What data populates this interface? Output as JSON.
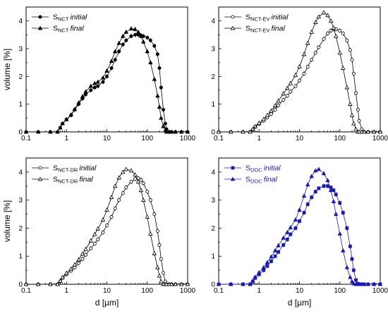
{
  "chart_data": [
    {
      "type": "line",
      "xscale": "log",
      "xlim": [
        0.1,
        1000
      ],
      "ylim": [
        0,
        4.5
      ],
      "xticks": [
        "0.1",
        "1",
        "10",
        "100",
        "1000"
      ],
      "yticks": [
        "0",
        "1",
        "2",
        "3",
        "4"
      ],
      "xlabel": "",
      "ylabel": "volume [%]",
      "legend_position": "top-left",
      "color": "#000000",
      "series": [
        {
          "name": "S",
          "name_sub": "NCT",
          "name_suffix": "initial",
          "marker": "circle-filled",
          "x": [
            0.1,
            0.2,
            0.4,
            0.6,
            0.7,
            0.8,
            1,
            1.3,
            1.6,
            2,
            2.5,
            3,
            4,
            5,
            6,
            8,
            10,
            13,
            16,
            20,
            25,
            30,
            40,
            50,
            60,
            70,
            80,
            100,
            120,
            150,
            180,
            200,
            220,
            250,
            280,
            300,
            350,
            400,
            500,
            700,
            1000
          ],
          "y": [
            0,
            0,
            0,
            0,
            0.15,
            0.3,
            0.45,
            0.6,
            0.8,
            1.0,
            1.2,
            1.35,
            1.5,
            1.6,
            1.65,
            1.8,
            2.0,
            2.3,
            2.6,
            2.9,
            3.15,
            3.3,
            3.45,
            3.5,
            3.5,
            3.48,
            3.45,
            3.4,
            3.3,
            3.1,
            2.8,
            2.3,
            1.6,
            0.8,
            0.3,
            0.1,
            0,
            0,
            0,
            0,
            0
          ]
        },
        {
          "name": "S",
          "name_sub": "NCT",
          "name_suffix": "final",
          "marker": "triangle-filled",
          "x": [
            0.1,
            0.2,
            0.4,
            0.6,
            0.7,
            0.8,
            1,
            1.3,
            1.6,
            2,
            2.5,
            3,
            4,
            5,
            6,
            8,
            10,
            13,
            16,
            20,
            25,
            30,
            40,
            50,
            60,
            70,
            80,
            100,
            120,
            150,
            180,
            200,
            220,
            250,
            280,
            300,
            350,
            400,
            500,
            700,
            1000
          ],
          "y": [
            0,
            0,
            0,
            0,
            0.15,
            0.3,
            0.45,
            0.62,
            0.82,
            1.05,
            1.28,
            1.45,
            1.65,
            1.75,
            1.8,
            1.95,
            2.2,
            2.55,
            2.9,
            3.2,
            3.45,
            3.6,
            3.72,
            3.7,
            3.6,
            3.45,
            3.25,
            2.9,
            2.5,
            1.9,
            1.3,
            0.9,
            0.5,
            0.2,
            0.05,
            0,
            0,
            0,
            0,
            0,
            0
          ]
        }
      ]
    },
    {
      "type": "line",
      "xscale": "log",
      "xlim": [
        0.1,
        1000
      ],
      "ylim": [
        0,
        4.5
      ],
      "xticks": [
        "0.1",
        "1",
        "10",
        "100",
        "1000"
      ],
      "yticks": [
        "0",
        "1",
        "2",
        "3",
        "4"
      ],
      "xlabel": "",
      "ylabel": "",
      "legend_position": "top-left",
      "color": "#000000",
      "series": [
        {
          "name": "S",
          "name_sub": "NCT-EV",
          "name_suffix": "initial",
          "marker": "circle-open",
          "x": [
            0.1,
            0.2,
            0.4,
            0.6,
            0.7,
            0.8,
            1,
            1.3,
            1.6,
            2,
            2.5,
            3,
            4,
            5,
            6,
            8,
            10,
            13,
            16,
            20,
            25,
            30,
            40,
            50,
            60,
            70,
            80,
            100,
            120,
            150,
            180,
            200,
            220,
            250,
            280,
            300,
            350,
            400,
            500,
            700,
            1000
          ],
          "y": [
            0,
            0,
            0,
            0,
            0.08,
            0.18,
            0.28,
            0.4,
            0.52,
            0.65,
            0.8,
            0.95,
            1.15,
            1.3,
            1.45,
            1.65,
            1.85,
            2.1,
            2.35,
            2.6,
            2.85,
            3.05,
            3.35,
            3.55,
            3.65,
            3.7,
            3.7,
            3.65,
            3.55,
            3.3,
            2.95,
            2.6,
            2.1,
            1.4,
            0.8,
            0.4,
            0.1,
            0,
            0,
            0,
            0
          ]
        },
        {
          "name": "S",
          "name_sub": "NCT-EV",
          "name_suffix": "final",
          "marker": "triangle-open",
          "x": [
            0.1,
            0.2,
            0.4,
            0.6,
            0.7,
            0.8,
            1,
            1.3,
            1.6,
            2,
            2.5,
            3,
            4,
            5,
            6,
            8,
            10,
            13,
            16,
            20,
            25,
            30,
            40,
            50,
            60,
            70,
            80,
            100,
            120,
            150,
            180,
            200,
            220,
            250,
            280,
            300,
            350,
            400,
            500,
            700,
            1000
          ],
          "y": [
            0,
            0,
            0,
            0,
            0.1,
            0.2,
            0.32,
            0.46,
            0.6,
            0.76,
            0.95,
            1.12,
            1.38,
            1.58,
            1.75,
            2.05,
            2.35,
            2.8,
            3.2,
            3.6,
            3.95,
            4.15,
            4.3,
            4.2,
            4.0,
            3.75,
            3.45,
            2.85,
            2.3,
            1.6,
            1.0,
            0.6,
            0.3,
            0.1,
            0,
            0,
            0,
            0,
            0,
            0,
            0
          ]
        }
      ]
    },
    {
      "type": "line",
      "xscale": "log",
      "xlim": [
        0.1,
        1000
      ],
      "ylim": [
        0,
        4.5
      ],
      "xticks": [
        "0.1",
        "1",
        "10",
        "100",
        "1000"
      ],
      "yticks": [
        "0",
        "1",
        "2",
        "3",
        "4"
      ],
      "xlabel": "d [µm]",
      "ylabel": "volume [%]",
      "legend_position": "top-left",
      "color": "#000000",
      "series": [
        {
          "name": "S",
          "name_sub": "NCT-DR",
          "name_suffix": "initial",
          "marker": "circle-open",
          "x": [
            0.1,
            0.2,
            0.4,
            0.6,
            0.7,
            0.8,
            1,
            1.3,
            1.6,
            2,
            2.5,
            3,
            4,
            5,
            6,
            8,
            10,
            13,
            16,
            20,
            25,
            30,
            40,
            50,
            60,
            70,
            80,
            100,
            120,
            150,
            180,
            200,
            220,
            250,
            280,
            300,
            350,
            400,
            500,
            700,
            1000
          ],
          "y": [
            0,
            0,
            0,
            0,
            0.1,
            0.22,
            0.35,
            0.48,
            0.6,
            0.75,
            0.9,
            1.05,
            1.28,
            1.45,
            1.6,
            1.85,
            2.1,
            2.4,
            2.7,
            3.0,
            3.25,
            3.45,
            3.65,
            3.75,
            3.78,
            3.72,
            3.6,
            3.3,
            3.0,
            2.5,
            1.9,
            1.4,
            0.9,
            0.4,
            0.1,
            0,
            0,
            0,
            0,
            0,
            0
          ]
        },
        {
          "name": "S",
          "name_sub": "NCT-DR",
          "name_suffix": "final",
          "marker": "triangle-open",
          "x": [
            0.1,
            0.2,
            0.4,
            0.6,
            0.7,
            0.8,
            1,
            1.3,
            1.6,
            2,
            2.5,
            3,
            4,
            5,
            6,
            8,
            10,
            13,
            16,
            20,
            25,
            30,
            40,
            50,
            60,
            70,
            80,
            100,
            120,
            150,
            180,
            200,
            220,
            250,
            280,
            300,
            350,
            400,
            500,
            700,
            1000
          ],
          "y": [
            0,
            0,
            0,
            0,
            0.12,
            0.25,
            0.4,
            0.55,
            0.7,
            0.88,
            1.08,
            1.25,
            1.55,
            1.78,
            1.98,
            2.3,
            2.65,
            3.1,
            3.5,
            3.8,
            4.0,
            4.1,
            4.05,
            3.9,
            3.65,
            3.35,
            3.0,
            2.4,
            1.8,
            1.1,
            0.6,
            0.3,
            0.1,
            0,
            0,
            0,
            0,
            0,
            0,
            0,
            0
          ]
        }
      ]
    },
    {
      "type": "line",
      "xscale": "log",
      "xlim": [
        0.1,
        1000
      ],
      "ylim": [
        0,
        4.5
      ],
      "xticks": [
        "0.1",
        "1",
        "10",
        "100",
        "1000"
      ],
      "yticks": [
        "0",
        "1",
        "2",
        "3",
        "4"
      ],
      "xlabel": "d [µm]",
      "ylabel": "",
      "legend_position": "top-left",
      "color": "#1a1aa8",
      "series": [
        {
          "name": "S",
          "name_sub": "DOC",
          "name_suffix": "initial",
          "marker": "square-filled",
          "x": [
            0.1,
            0.2,
            0.4,
            0.6,
            0.7,
            0.8,
            1,
            1.3,
            1.6,
            2,
            2.5,
            3,
            4,
            5,
            6,
            8,
            10,
            13,
            16,
            20,
            25,
            30,
            40,
            50,
            60,
            70,
            80,
            100,
            120,
            150,
            180,
            200,
            220,
            250,
            280,
            300,
            350,
            400,
            500,
            700,
            1000
          ],
          "y": [
            0,
            0,
            0,
            0,
            0.1,
            0.22,
            0.35,
            0.5,
            0.65,
            0.82,
            1.0,
            1.15,
            1.4,
            1.6,
            1.78,
            2.0,
            2.25,
            2.55,
            2.85,
            3.1,
            3.3,
            3.42,
            3.5,
            3.5,
            3.45,
            3.35,
            3.2,
            2.9,
            2.55,
            2.0,
            1.35,
            0.9,
            0.5,
            0.15,
            0.02,
            0,
            0,
            0,
            0,
            0,
            0
          ]
        },
        {
          "name": "S",
          "name_sub": "DOC",
          "name_suffix": "final",
          "marker": "triangle-filled",
          "x": [
            0.1,
            0.2,
            0.4,
            0.6,
            0.7,
            0.8,
            1,
            1.3,
            1.6,
            2,
            2.5,
            3,
            4,
            5,
            6,
            8,
            10,
            13,
            16,
            20,
            25,
            30,
            40,
            50,
            60,
            70,
            80,
            100,
            120,
            150,
            180,
            200,
            220,
            250,
            280,
            300,
            350,
            400,
            500,
            700,
            1000
          ],
          "y": [
            0,
            0,
            0,
            0,
            0.12,
            0.26,
            0.42,
            0.6,
            0.78,
            0.98,
            1.2,
            1.38,
            1.65,
            1.85,
            2.02,
            2.3,
            2.65,
            3.15,
            3.55,
            3.85,
            4.05,
            4.1,
            3.95,
            3.7,
            3.35,
            2.95,
            2.5,
            1.8,
            1.2,
            0.6,
            0.25,
            0.1,
            0.02,
            0,
            0,
            0,
            0,
            0,
            0,
            0,
            0
          ]
        }
      ]
    }
  ]
}
